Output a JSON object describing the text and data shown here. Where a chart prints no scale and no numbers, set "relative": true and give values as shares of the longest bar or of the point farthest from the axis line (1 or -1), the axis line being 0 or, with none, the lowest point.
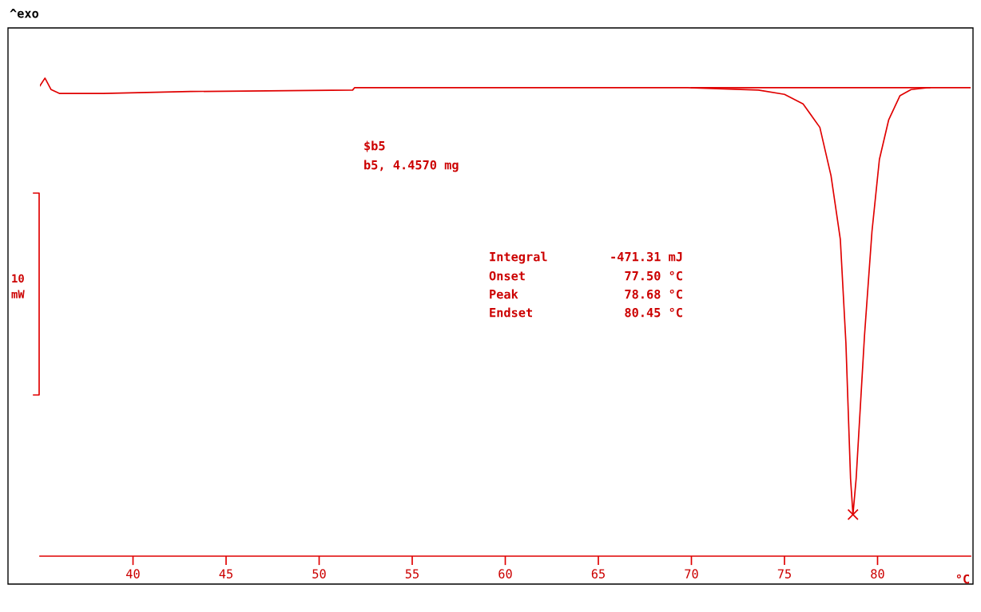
{
  "chart_data": {
    "type": "line",
    "relative": true,
    "xlabel": "°C",
    "xlim": [
      35,
      85
    ],
    "xticks": [
      40,
      45,
      50,
      55,
      60,
      65,
      70,
      75,
      80
    ],
    "grid": false,
    "legend": false,
    "series": [
      {
        "color": "#e00000",
        "x": [
          35.0,
          35.27,
          35.6,
          36.04,
          38.4,
          43.1,
          51.8,
          51.9,
          69.8,
          73.6,
          75.0,
          76.0,
          76.9,
          77.5,
          78.0,
          78.3,
          78.55,
          78.68,
          78.85,
          79.3,
          79.7,
          80.1,
          80.6,
          81.2,
          81.8,
          82.7,
          85.0
        ],
        "values": [
          0.984,
          1.0,
          0.976,
          0.968,
          0.968,
          0.972,
          0.975,
          0.98,
          0.98,
          0.975,
          0.966,
          0.946,
          0.897,
          0.796,
          0.663,
          0.446,
          0.162,
          0.087,
          0.162,
          0.462,
          0.679,
          0.83,
          0.913,
          0.963,
          0.976,
          0.98,
          0.98
        ]
      },
      {
        "color": "#e00000",
        "x": [
          70.0,
          82.8
        ],
        "values": [
          0.98,
          0.98
        ]
      },
      {
        "type": "scatter",
        "color": "#e00000",
        "x": [
          78.68
        ],
        "values": [
          0.087
        ],
        "marker": "cross"
      }
    ],
    "annotations": [
      "^exo",
      "$b5",
      "b5, 4.4570 mg",
      "Integral",
      "-471.31 mJ",
      "Onset",
      "77.50 °C",
      "Peak",
      "78.68 °C",
      "Endset",
      "80.45 °C",
      "10 mW"
    ]
  }
}
